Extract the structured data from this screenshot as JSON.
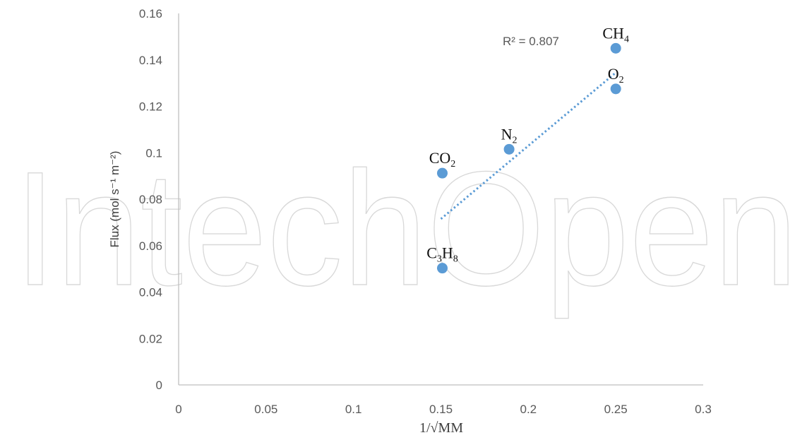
{
  "watermark": "IntechOpen",
  "chart_data": {
    "type": "scatter",
    "xlabel": "1/√MM",
    "ylabel": "Flux (mol s⁻¹ m⁻²)",
    "xlim": [
      0,
      0.3
    ],
    "ylim": [
      0,
      0.16
    ],
    "x_ticks": [
      "0",
      "0.05",
      "0.1",
      "0.15",
      "0.2",
      "0.25",
      "0.3"
    ],
    "y_ticks": [
      "0",
      "0.02",
      "0.04",
      "0.06",
      "0.08",
      "0.1",
      "0.12",
      "0.14",
      "0.16"
    ],
    "grid": false,
    "legend": "none",
    "marker_color": "#5b9bd5",
    "trendline": {
      "type": "linear",
      "style": "dotted",
      "color": "#5b9bd5",
      "x_range": [
        0.15,
        0.25
      ],
      "y_range": [
        0.0715,
        0.1345
      ],
      "r2_label": "R² = 0.807"
    },
    "points": [
      {
        "label": "C3H8",
        "label_base": [
          "C",
          "H"
        ],
        "label_subs": [
          "3",
          "8"
        ],
        "x": 0.1508,
        "y": 0.0503
      },
      {
        "label": "CO2",
        "label_base": [
          "CO"
        ],
        "label_subs": [
          "2"
        ],
        "x": 0.1508,
        "y": 0.0912
      },
      {
        "label": "N2",
        "label_base": [
          "N"
        ],
        "label_subs": [
          "2"
        ],
        "x": 0.189,
        "y": 0.1015
      },
      {
        "label": "O2",
        "label_base": [
          "O"
        ],
        "label_subs": [
          "2"
        ],
        "x": 0.25,
        "y": 0.1275
      },
      {
        "label": "CH4",
        "label_base": [
          "CH"
        ],
        "label_subs": [
          "4"
        ],
        "x": 0.25,
        "y": 0.145
      }
    ]
  }
}
